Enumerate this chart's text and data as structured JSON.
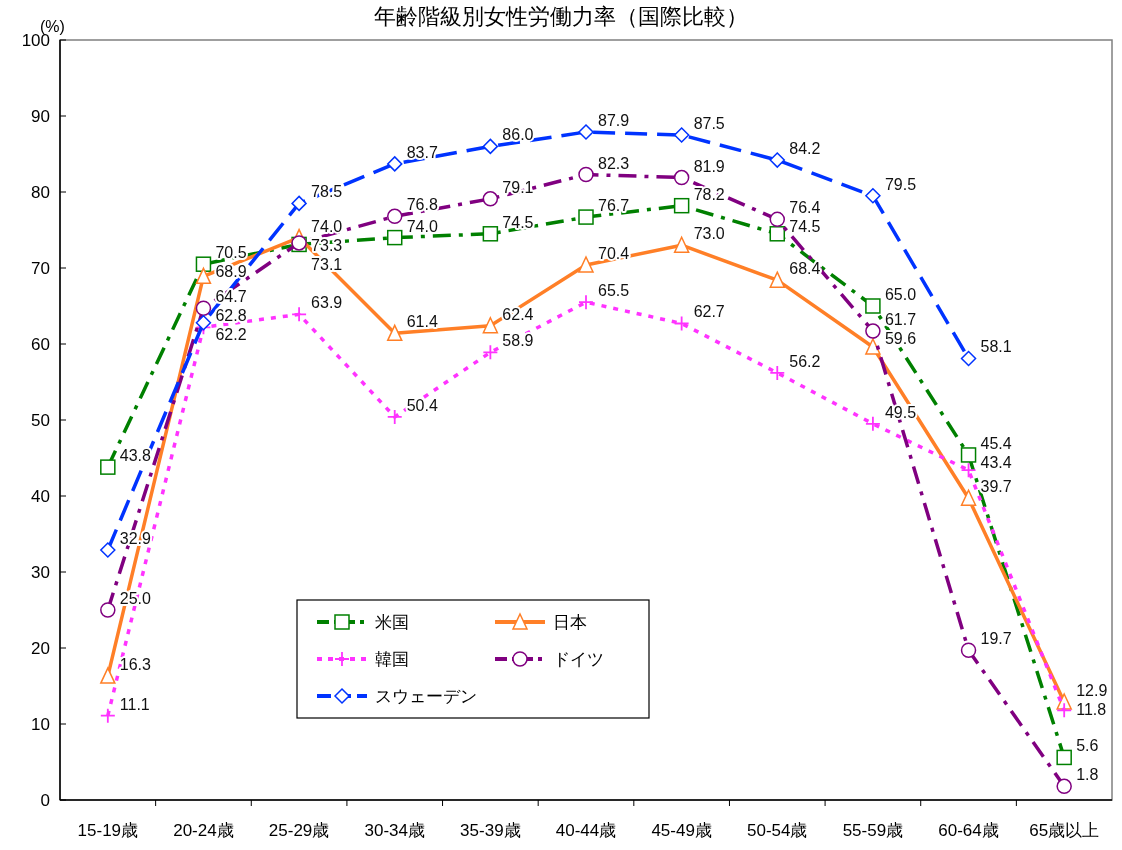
{
  "chart_data": {
    "type": "line",
    "title": "年齢階級別女性労働力率（国際比較）",
    "ylabel": "(%)",
    "categories": [
      "15-19歳",
      "20-24歳",
      "25-29歳",
      "30-34歳",
      "35-39歳",
      "40-44歳",
      "45-49歳",
      "50-54歳",
      "55-59歳",
      "60-64歳",
      "65歳以上"
    ],
    "series": [
      {
        "name": "米国",
        "color": "#008000",
        "marker": "square",
        "line_style": "dashdot",
        "values": [
          43.8,
          70.5,
          73.1,
          74.0,
          74.5,
          76.7,
          78.2,
          74.5,
          65.0,
          45.4,
          5.6
        ],
        "value_labels": [
          "43.8",
          "70.5",
          "73.1",
          "74.0",
          "74.5",
          "76.7",
          "78.2",
          "74.5",
          "65.0",
          "45.4",
          "5.6"
        ]
      },
      {
        "name": "日本",
        "color": "#ff7f27",
        "marker": "triangle",
        "line_style": "solid",
        "values": [
          16.3,
          68.9,
          74.0,
          61.4,
          62.4,
          70.4,
          73.0,
          68.4,
          59.6,
          39.7,
          12.9
        ],
        "value_labels": [
          "16.3",
          "68.9",
          "74.0",
          "61.4",
          "62.4",
          "70.4",
          "73.0",
          "68.4",
          "59.6",
          "39.7",
          "12.9"
        ]
      },
      {
        "name": "韓国",
        "color": "#ff33ff",
        "marker": "cross",
        "line_style": "dotted",
        "values": [
          11.1,
          62.2,
          63.9,
          50.4,
          58.9,
          65.5,
          62.7,
          56.2,
          49.5,
          43.4,
          11.8
        ],
        "value_labels": [
          "11.1",
          "62.2",
          "63.9",
          "50.4",
          "58.9",
          "65.5",
          "62.7",
          "56.2",
          "49.5",
          "43.4",
          "11.8"
        ]
      },
      {
        "name": "ドイツ",
        "color": "#800080",
        "marker": "circle",
        "line_style": "dashdot",
        "values": [
          25.0,
          64.7,
          73.3,
          76.8,
          79.1,
          82.3,
          81.9,
          76.4,
          61.7,
          19.7,
          1.8
        ],
        "value_labels": [
          "25.0",
          "64.7",
          "73.3",
          "76.8",
          "79.1",
          "82.3",
          "81.9",
          "76.4",
          "61.7",
          "19.7",
          "1.8"
        ]
      },
      {
        "name": "スウェーデン",
        "color": "#0033ff",
        "marker": "diamond",
        "line_style": "dashed",
        "values": [
          32.9,
          62.8,
          78.5,
          83.7,
          86.0,
          87.9,
          87.5,
          84.2,
          79.5,
          58.1,
          null
        ],
        "value_labels": [
          "32.9",
          "62.8",
          "78.5",
          "83.7",
          "86.0",
          "87.9",
          "87.5",
          "84.2",
          "79.5",
          "58.1",
          null
        ]
      }
    ],
    "ylim": [
      0,
      100
    ],
    "yticks": [
      0,
      10,
      20,
      30,
      40,
      50,
      60,
      70,
      80,
      90,
      100
    ],
    "legend": "bottom",
    "grid": false
  }
}
